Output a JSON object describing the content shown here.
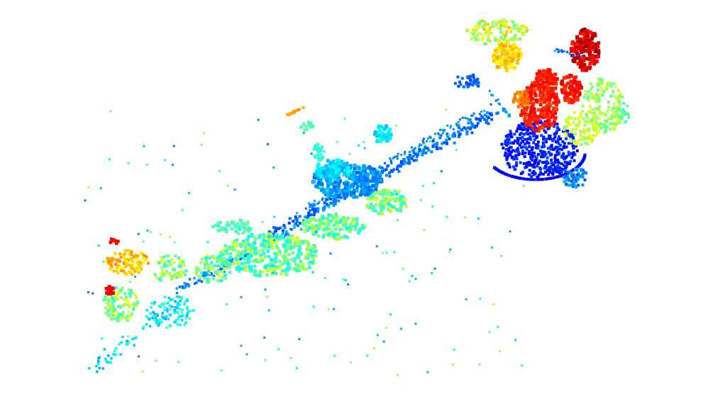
{
  "scene": {
    "description_visible_text": "",
    "colormap": "jet",
    "colormap_stops": [
      "#00008f",
      "#0000ff",
      "#0080ff",
      "#00ffff",
      "#80ff80",
      "#ffff00",
      "#ff8000",
      "#ff0000",
      "#800000"
    ],
    "background_color": "#ffffff"
  }
}
